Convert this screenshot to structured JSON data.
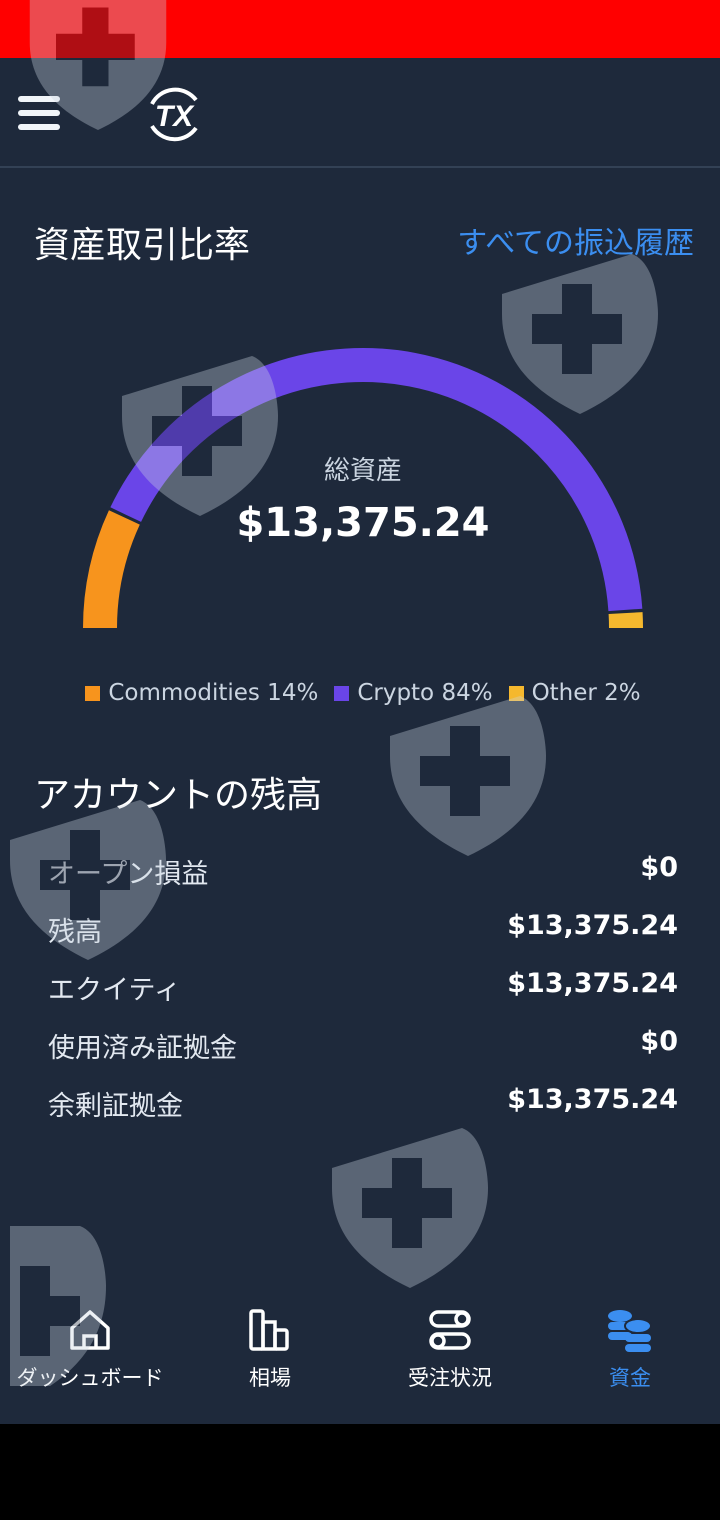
{
  "header": {
    "logo_text": "TX",
    "menu_icon": "hamburger-icon"
  },
  "ratio": {
    "title": "資産取引比率",
    "link": "すべての振込履歴",
    "total_label": "総資産",
    "total_value": "$13,375.24"
  },
  "chart_data": {
    "type": "pie",
    "style": "semicircle-gauge",
    "categories": [
      "Commodities",
      "Crypto",
      "Other"
    ],
    "values": [
      14,
      84,
      2
    ],
    "colors": [
      "#f7941d",
      "#6a45e8",
      "#f5b82e"
    ],
    "legend": [
      "Commodities 14%",
      "Crypto 84%",
      "Other 2%"
    ],
    "legend_position": "bottom"
  },
  "balance": {
    "title": "アカウントの残高",
    "rows": [
      {
        "label": "オープン損益",
        "value": "$0"
      },
      {
        "label": "残高",
        "value": "$13,375.24"
      },
      {
        "label": "エクイティ",
        "value": "$13,375.24"
      },
      {
        "label": "使用済み証拠金",
        "value": "$0"
      },
      {
        "label": "余剰証拠金",
        "value": "$13,375.24"
      }
    ]
  },
  "nav": [
    {
      "label": "ダッシュボード",
      "icon": "home-icon"
    },
    {
      "label": "相場",
      "icon": "bar-chart-icon"
    },
    {
      "label": "受注状況",
      "icon": "toggles-icon"
    },
    {
      "label": "資金",
      "icon": "coins-icon",
      "active": true
    }
  ],
  "colors": {
    "background": "#1e293b",
    "accent": "#3b8ef0",
    "topbar": "#ff0000"
  }
}
